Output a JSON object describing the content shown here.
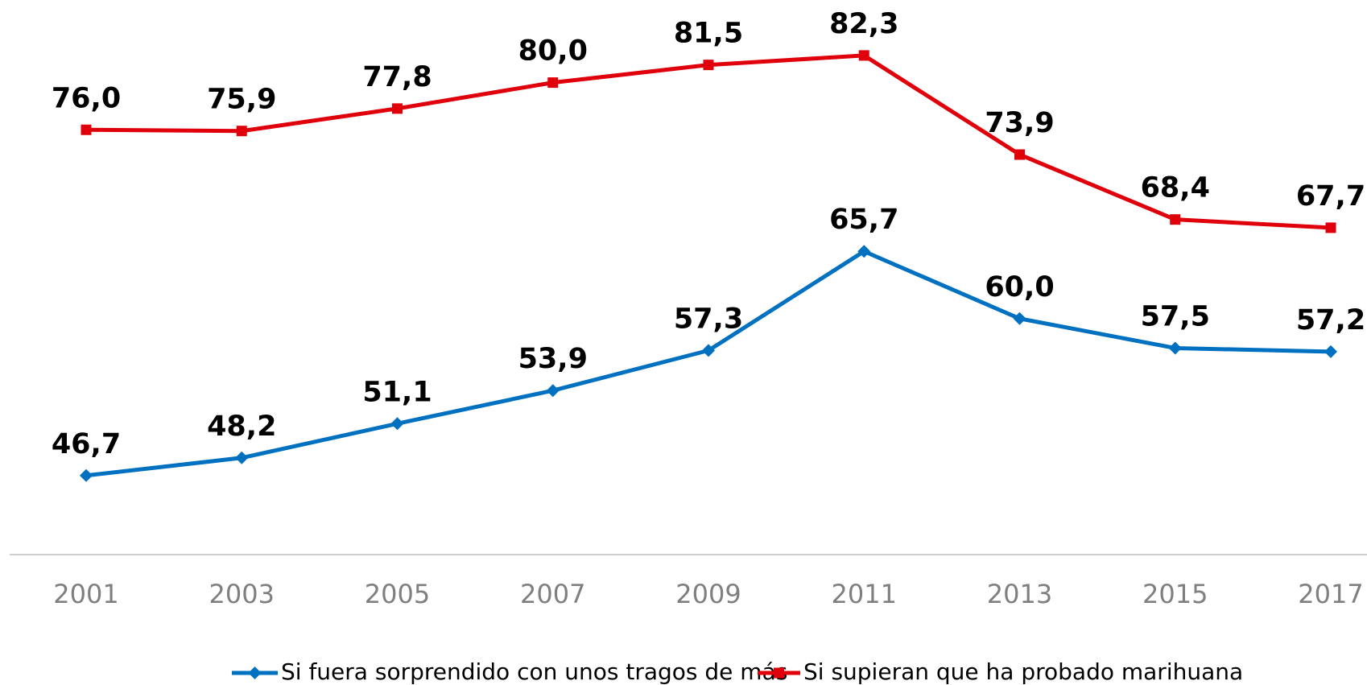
{
  "chart_data": {
    "type": "line",
    "categories": [
      "2001",
      "2003",
      "2005",
      "2007",
      "2009",
      "2011",
      "2013",
      "2015",
      "2017"
    ],
    "series": [
      {
        "name": "Si fuera sorprendido con unos tragos de más",
        "color": "#0070c0",
        "marker": "diamond",
        "values": [
          46.7,
          48.2,
          51.1,
          53.9,
          57.3,
          65.7,
          60.0,
          57.5,
          57.2
        ],
        "value_labels": [
          "46,7",
          "48,2",
          "51,1",
          "53,9",
          "57,3",
          "65,7",
          "60,0",
          "57,5",
          "57,2"
        ]
      },
      {
        "name": "Si supieran que ha probado marihuana",
        "color": "#e0000b",
        "marker": "square",
        "values": [
          76.0,
          75.9,
          77.8,
          80.0,
          81.5,
          82.3,
          73.9,
          68.4,
          67.7
        ],
        "value_labels": [
          "76,0",
          "75,9",
          "77,8",
          "80,0",
          "81,5",
          "82,3",
          "73,9",
          "68,4",
          "67,7"
        ]
      }
    ],
    "ylim": [
      40,
      87
    ],
    "legend": "bottom"
  }
}
